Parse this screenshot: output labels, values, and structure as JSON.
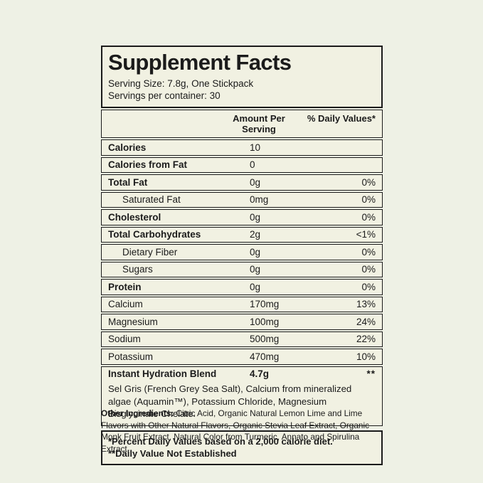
{
  "label": {
    "title": "Supplement Facts",
    "serving_size": "Serving Size: 7.8g, One Stickpack",
    "servings_per_container": "Servings per container: 30",
    "columns": {
      "amount": "Amount Per Serving",
      "daily_value": "% Daily Values*"
    },
    "rows": [
      {
        "name": "Calories",
        "amount": "10",
        "dv": ""
      },
      {
        "name": "Calories from Fat",
        "amount": "0",
        "dv": ""
      },
      {
        "name": "Total Fat",
        "amount": "0g",
        "dv": "0%"
      },
      {
        "name": "Saturated Fat",
        "amount": "0mg",
        "dv": "0%"
      },
      {
        "name": "Cholesterol",
        "amount": "0g",
        "dv": "0%"
      },
      {
        "name": "Total Carbohydrates",
        "amount": "2g",
        "dv": "<1%"
      },
      {
        "name": "Dietary Fiber",
        "amount": "0g",
        "dv": "0%"
      },
      {
        "name": "Sugars",
        "amount": "0g",
        "dv": "0%"
      },
      {
        "name": "Protein",
        "amount": "0g",
        "dv": "0%"
      },
      {
        "name": "Calcium",
        "amount": "170mg",
        "dv": "13%"
      },
      {
        "name": "Magnesium",
        "amount": "100mg",
        "dv": "24%"
      },
      {
        "name": "Sodium",
        "amount": "500mg",
        "dv": "22%"
      },
      {
        "name": "Potassium",
        "amount": "470mg",
        "dv": "10%"
      },
      {
        "name": "Instant Hydration Blend",
        "amount": "4.7g",
        "dv": "**"
      }
    ],
    "blend_description": "Sel Gris (French Grey Sea Salt), Calcium from mineralized algae (Aquamin™), Potassium Chloride, Magnesium Bisglycinate Chelate.",
    "footnotes": [
      "*Percent Daily Values based on a 2,000 calorie diet.",
      "**Daily Value Not Established"
    ],
    "other_ingredients": {
      "label": "Other Ingredients:",
      "text": " Citric Acid, Organic Natural Lemon Lime and Lime Flavors with Other Natural Flavors, Organic Stevia Leaf Extract, Organic Monk Fruit Extract, Natural Color from Turmeric, Annato and Spirulina Extract."
    }
  },
  "colors": {
    "page_background": "#eef1e5",
    "panel_fill": "#f1f1e2",
    "border": "#1b1b1b",
    "text": "#1b1b1b"
  }
}
